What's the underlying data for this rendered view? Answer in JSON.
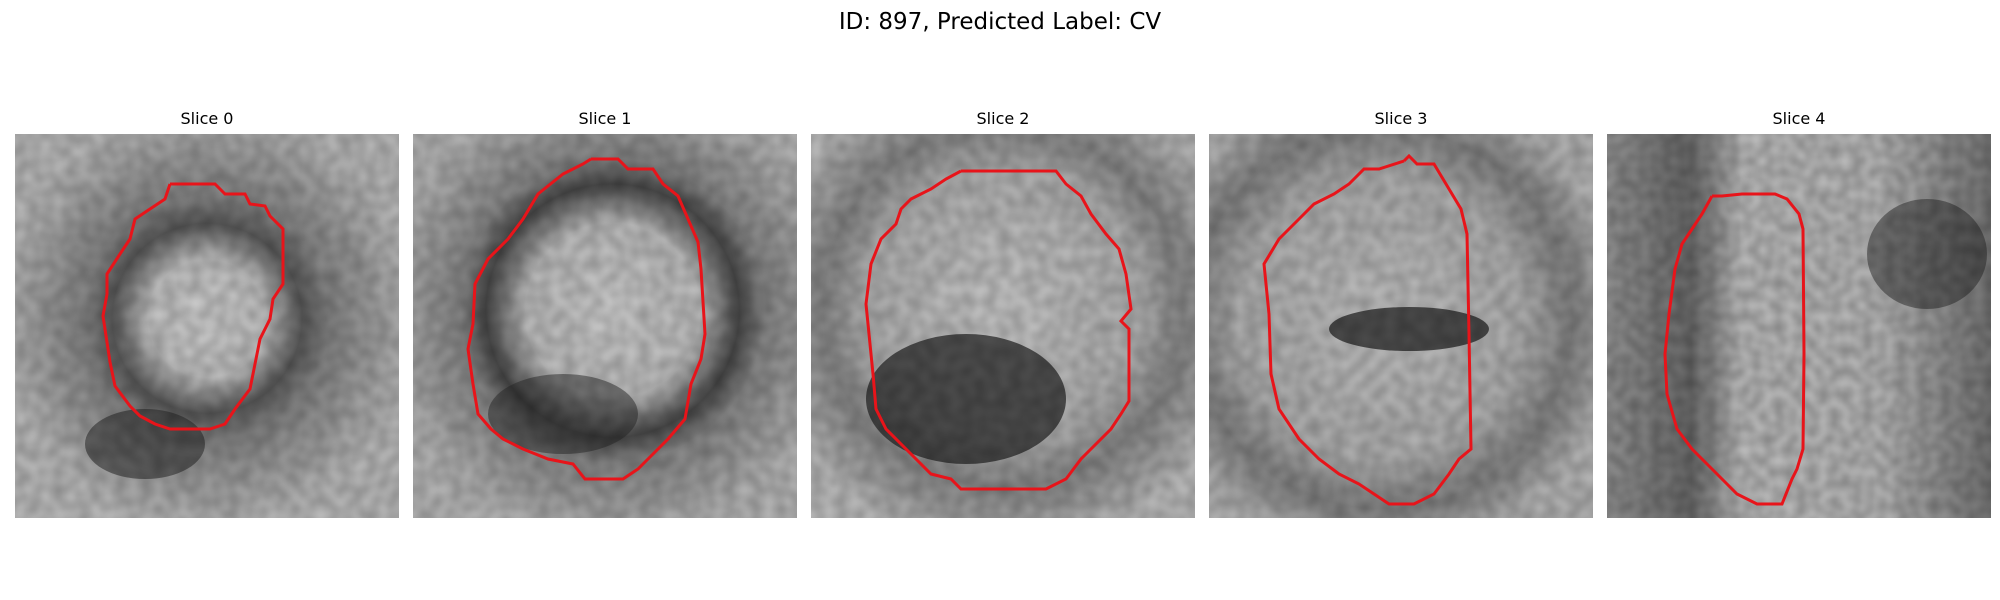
{
  "figure": {
    "title": "ID: 897, Predicted Label: CV"
  },
  "colors": {
    "outline": "#e8141a",
    "background": "#ffffff"
  },
  "slices": [
    {
      "label": "Slice 0"
    },
    {
      "label": "Slice 1"
    },
    {
      "label": "Slice 2"
    },
    {
      "label": "Slice 3"
    },
    {
      "label": "Slice 4"
    }
  ]
}
